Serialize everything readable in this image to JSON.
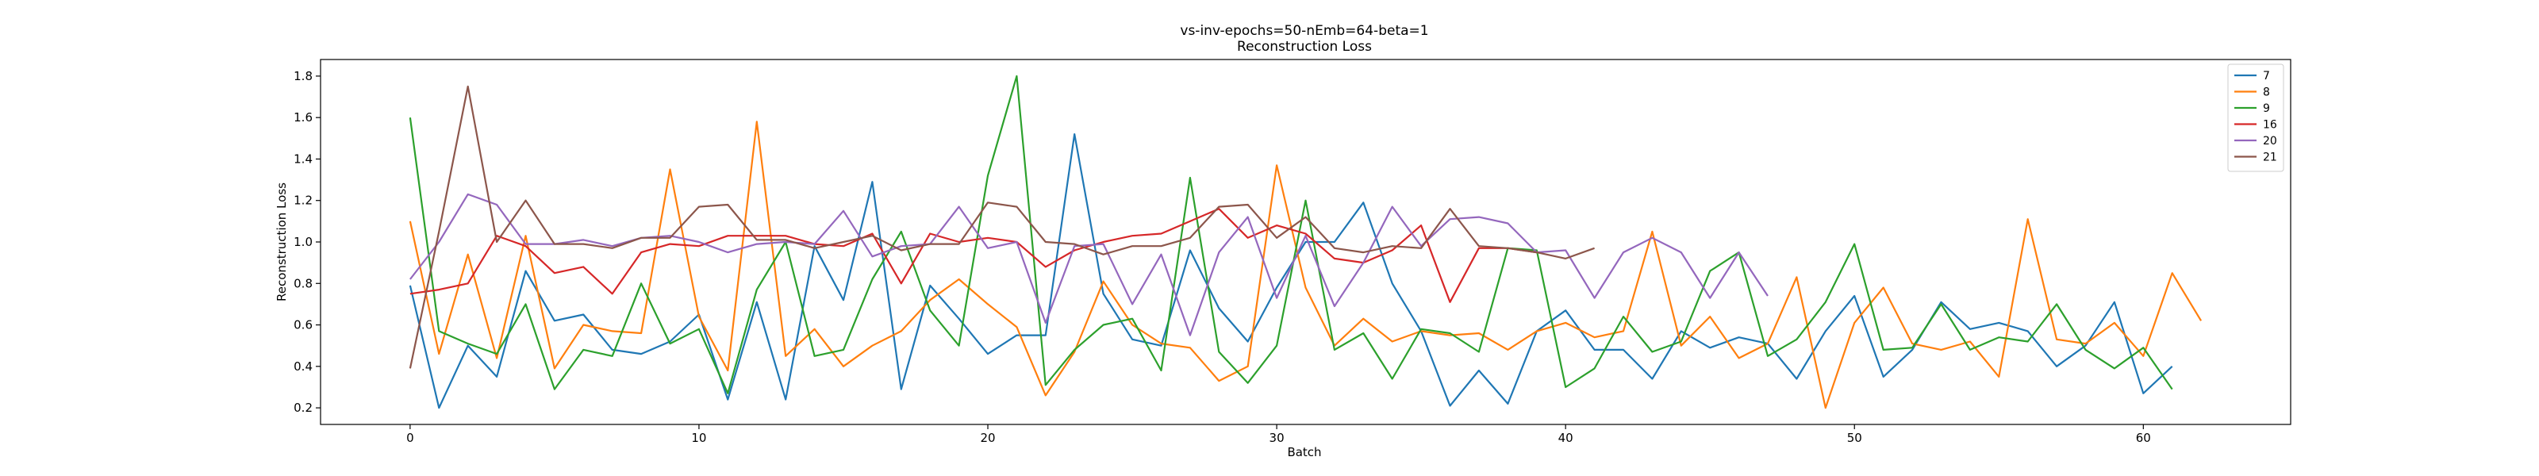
{
  "chart_data": {
    "type": "line",
    "title": "vs-inv-epochs=50-nEmb=64-beta=1",
    "subtitle": "Reconstruction Loss",
    "xlabel": "Batch",
    "ylabel": "Reconstruction Loss",
    "xlim": [
      -3.1,
      65.1
    ],
    "ylim": [
      0.12,
      1.88
    ],
    "xticks": [
      0,
      10,
      20,
      30,
      40,
      50,
      60
    ],
    "yticks": [
      0.2,
      0.4,
      0.6,
      0.8,
      1.0,
      1.2,
      1.4,
      1.6,
      1.8
    ],
    "legend_position": "top-right",
    "grid": false,
    "series": [
      {
        "name": "7",
        "color": "#1f77b4",
        "values": [
          0.79,
          0.2,
          0.5,
          0.35,
          0.86,
          0.62,
          0.65,
          0.48,
          0.46,
          0.52,
          0.65,
          0.24,
          0.71,
          0.24,
          0.98,
          0.72,
          1.29,
          0.29,
          0.79,
          0.63,
          0.46,
          0.55,
          0.55,
          1.52,
          0.75,
          0.53,
          0.5,
          0.96,
          0.68,
          0.52,
          0.78,
          1.0,
          1.0,
          1.19,
          0.8,
          0.57,
          0.21,
          0.38,
          0.22,
          0.57,
          0.67,
          0.48,
          0.48,
          0.34,
          0.57,
          0.49,
          0.54,
          0.51,
          0.34,
          0.57,
          0.74,
          0.35,
          0.48,
          0.71,
          0.58,
          0.61,
          0.57,
          0.4,
          0.5,
          0.71,
          0.27,
          0.4
        ]
      },
      {
        "name": "8",
        "color": "#ff7f0e",
        "values": [
          1.1,
          0.46,
          0.94,
          0.44,
          1.03,
          0.39,
          0.6,
          0.57,
          0.56,
          1.35,
          0.64,
          0.38,
          1.58,
          0.45,
          0.58,
          0.4,
          0.5,
          0.57,
          0.72,
          0.82,
          0.7,
          0.59,
          0.26,
          0.47,
          0.81,
          0.6,
          0.51,
          0.49,
          0.33,
          0.4,
          1.37,
          0.78,
          0.5,
          0.63,
          0.52,
          0.57,
          0.55,
          0.56,
          0.48,
          0.57,
          0.61,
          0.54,
          0.57,
          1.05,
          0.5,
          0.64,
          0.44,
          0.51,
          0.83,
          0.2,
          0.61,
          0.78,
          0.51,
          0.48,
          0.52,
          0.35,
          1.11,
          0.53,
          0.51,
          0.61,
          0.45,
          0.85,
          0.62
        ]
      },
      {
        "name": "9",
        "color": "#2ca02c",
        "values": [
          1.6,
          0.57,
          0.51,
          0.46,
          0.7,
          0.29,
          0.48,
          0.45,
          0.8,
          0.51,
          0.58,
          0.27,
          0.77,
          1.0,
          0.45,
          0.48,
          0.82,
          1.05,
          0.67,
          0.5,
          1.32,
          1.8,
          0.31,
          0.48,
          0.6,
          0.63,
          0.38,
          1.31,
          0.47,
          0.32,
          0.5,
          1.2,
          0.48,
          0.56,
          0.34,
          0.58,
          0.56,
          0.47,
          0.97,
          0.96,
          0.3,
          0.39,
          0.64,
          0.47,
          0.52,
          0.86,
          0.95,
          0.45,
          0.53,
          0.71,
          0.99,
          0.48,
          0.49,
          0.7,
          0.48,
          0.54,
          0.52,
          0.7,
          0.48,
          0.39,
          0.49,
          0.29
        ]
      },
      {
        "name": "16",
        "color": "#d62728",
        "values": [
          0.75,
          0.77,
          0.8,
          1.03,
          0.98,
          0.85,
          0.88,
          0.75,
          0.95,
          0.99,
          0.98,
          1.03,
          1.03,
          1.03,
          0.99,
          0.98,
          1.04,
          0.8,
          1.04,
          1.0,
          1.02,
          1.0,
          0.88,
          0.96,
          1.0,
          1.03,
          1.04,
          1.1,
          1.16,
          1.02,
          1.08,
          1.04,
          0.92,
          0.9,
          0.96,
          1.08,
          0.71,
          0.97,
          0.97,
          0.95
        ]
      },
      {
        "name": "20",
        "color": "#9467bd",
        "values": [
          0.82,
          1.0,
          1.23,
          1.18,
          0.99,
          0.99,
          1.01,
          0.98,
          1.02,
          1.03,
          1.0,
          0.95,
          0.99,
          1.0,
          0.99,
          1.15,
          0.93,
          0.98,
          0.99,
          1.17,
          0.97,
          1.0,
          0.61,
          0.98,
          0.99,
          0.7,
          0.94,
          0.55,
          0.95,
          1.12,
          0.73,
          1.03,
          0.69,
          0.9,
          1.17,
          0.98,
          1.11,
          1.12,
          1.09,
          0.95,
          0.96,
          0.73,
          0.95,
          1.02,
          0.95,
          0.73,
          0.95,
          0.74
        ]
      },
      {
        "name": "21",
        "color": "#8c564b",
        "values": [
          0.39,
          1.05,
          1.75,
          1.0,
          1.2,
          0.99,
          0.99,
          0.97,
          1.02,
          1.02,
          1.17,
          1.18,
          1.01,
          1.01,
          0.97,
          1.0,
          1.03,
          0.96,
          0.99,
          0.99,
          1.19,
          1.17,
          1.0,
          0.99,
          0.94,
          0.98,
          0.98,
          1.02,
          1.17,
          1.18,
          1.02,
          1.12,
          0.97,
          0.95,
          0.98,
          0.97,
          1.16,
          0.98,
          0.97,
          0.95,
          0.92,
          0.97
        ]
      }
    ]
  }
}
